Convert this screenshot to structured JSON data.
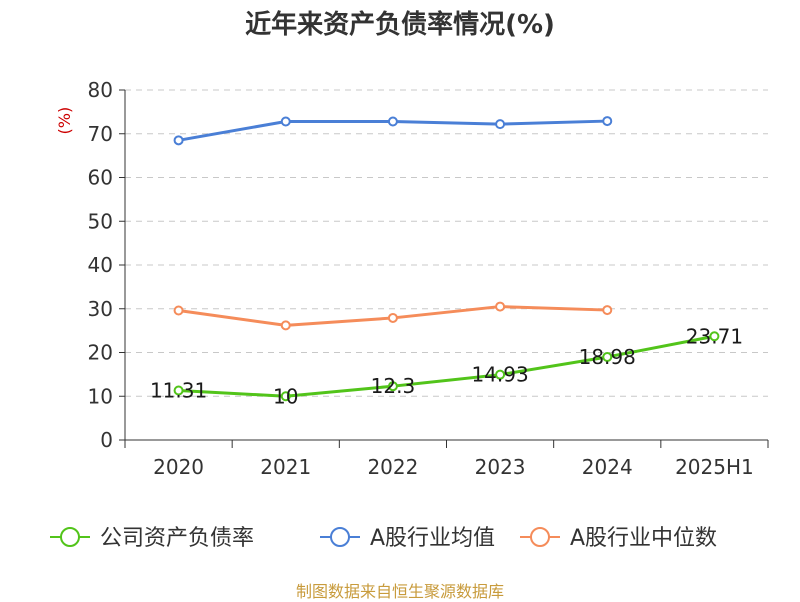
{
  "chart_data": {
    "type": "line",
    "title": "近年来资产负债率情况(%)",
    "unit_label": "(%)",
    "x": [
      "2020",
      "2021",
      "2022",
      "2023",
      "2024",
      "2025H1"
    ],
    "ylim": [
      0,
      80
    ],
    "yticks": [
      0,
      10,
      20,
      30,
      40,
      50,
      60,
      70,
      80
    ],
    "grid": true,
    "legend_position": "bottom",
    "series": [
      {
        "name": "公司资产负债率",
        "color": "#52c41a",
        "values": [
          11.31,
          10,
          12.3,
          14.93,
          18.98,
          23.71
        ],
        "data_labels": [
          "11.31",
          "10",
          "12.3",
          "14.93",
          "18.98",
          "23.71"
        ]
      },
      {
        "name": "A股行业均值",
        "color": "#4a7fd6",
        "values": [
          68.5,
          72.8,
          72.8,
          72.2,
          72.9,
          null
        ]
      },
      {
        "name": "A股行业中位数",
        "color": "#f58c5a",
        "values": [
          29.6,
          26.2,
          27.9,
          30.5,
          29.7,
          null
        ]
      }
    ]
  },
  "footer": {
    "source": "制图数据来自恒生聚源数据库"
  }
}
